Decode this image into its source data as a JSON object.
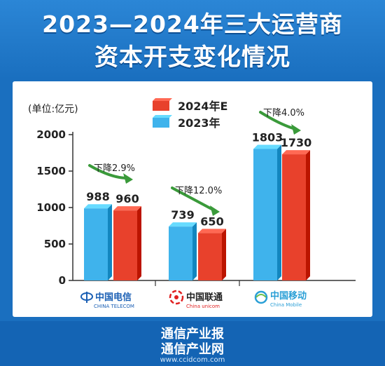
{
  "title_line1": "2023—2024年三大运营商",
  "title_line2": "资本开支变化情况",
  "footer": {
    "brand_line1": "通信产业报",
    "brand_line2": "通信产业网",
    "url": "www.ccidcom.com"
  },
  "colors": {
    "series_2023": "#3fb3ec",
    "series_2024E": "#e8412c",
    "arrow": "#3a9a3a",
    "header_bg": "#1a6fbf"
  },
  "chart_data": {
    "type": "bar",
    "unit_label": "(单位:亿元)",
    "categories": [
      "中国电信",
      "中国联通",
      "中国移动"
    ],
    "category_logos": [
      {
        "name": "中国电信",
        "english": "CHINA TELECOM",
        "icon": "china-telecom-logo",
        "color": "#1a5fb4"
      },
      {
        "name": "中国联通",
        "english": "China unicom",
        "icon": "china-unicom-logo",
        "color": "#e02020"
      },
      {
        "name": "中国移动",
        "english": "China Mobile",
        "icon": "china-mobile-logo",
        "color": "#2a9fd6"
      }
    ],
    "series": [
      {
        "name": "2023年",
        "values": [
          988,
          739,
          1803
        ]
      },
      {
        "name": "2024年E",
        "values": [
          960,
          650,
          1730
        ]
      }
    ],
    "changes": [
      "下降2.9%",
      "下降12.0%",
      "下降4.0%"
    ],
    "y_ticks": [
      0,
      500,
      1000,
      1500,
      2000
    ],
    "ylim": [
      0,
      2000
    ],
    "legend_order": [
      "2024年E",
      "2023年"
    ]
  }
}
